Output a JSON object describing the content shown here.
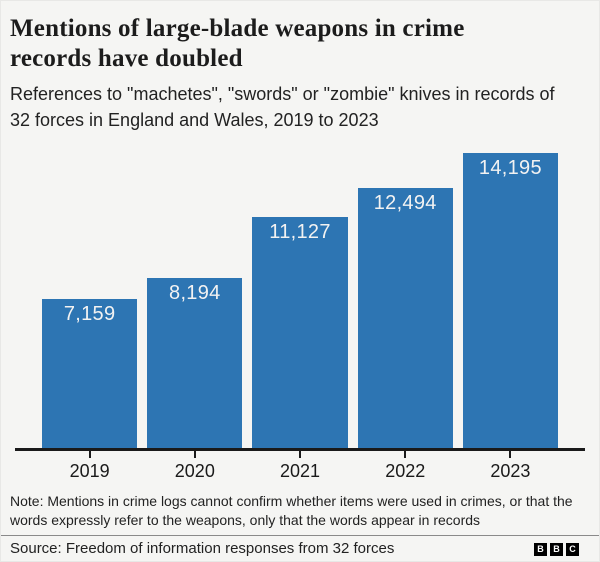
{
  "header": {
    "title": "Mentions of large-blade weapons in crime records have doubled",
    "subtitle": "References to \"machetes\", \"swords\" or \"zombie\" knives in records of 32 forces in England and Wales, 2019 to 2023"
  },
  "chart_data": {
    "type": "bar",
    "categories": [
      "2019",
      "2020",
      "2021",
      "2022",
      "2023"
    ],
    "values": [
      7159,
      8194,
      11127,
      12494,
      14195
    ],
    "value_labels": [
      "7,159",
      "8,194",
      "11,127",
      "12,494",
      "14,195"
    ],
    "title": "Mentions of large-blade weapons in crime records have doubled",
    "xlabel": "",
    "ylabel": "",
    "ylim": [
      0,
      14195
    ],
    "grid": false,
    "legend": "none",
    "bar_color": "#2d75b3",
    "value_label_color": "#f2f2f2",
    "axis_color": "#1a1a1a"
  },
  "footer": {
    "note": "Note: Mentions in crime logs cannot confirm whether items were used in crimes, or that the words expressly refer to the weapons, only that the words appear in records",
    "source": "Source: Freedom of information responses from 32 forces",
    "logo_letters": [
      "B",
      "B",
      "C"
    ]
  },
  "colors": {
    "background": "#f5f5f3",
    "bar": "#2d75b3",
    "axis": "#1a1a1a",
    "text": "#222222"
  }
}
